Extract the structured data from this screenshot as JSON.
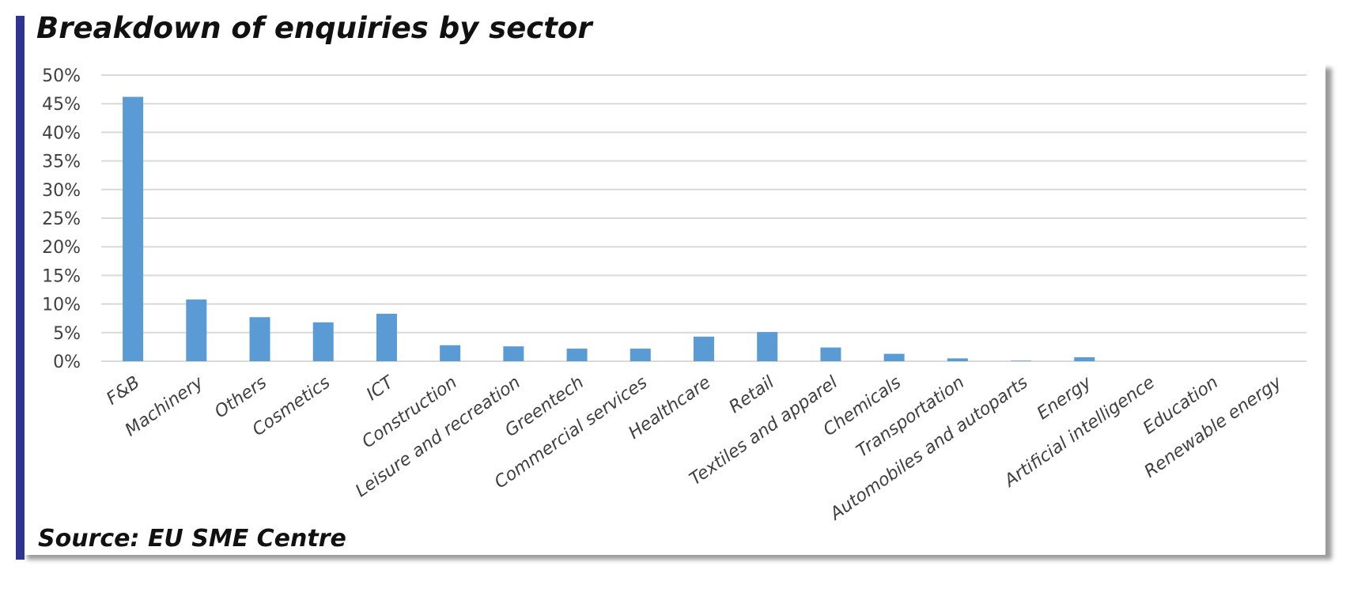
{
  "chart_data": {
    "type": "bar",
    "title": "Breakdown of enquiries by sector",
    "source": "Source: EU SME Centre",
    "xlabel": "",
    "ylabel": "",
    "ylim": [
      0,
      50
    ],
    "ytick_step": 5,
    "ytick_suffix": "%",
    "grid": true,
    "legend": "none",
    "bar_color": "#5b9bd5",
    "grid_color": "#d9d9d9",
    "accent_color": "#2e3490",
    "categories": [
      "F&B",
      "Machinery",
      "Others",
      "Cosmetics",
      "ICT",
      "Construction",
      "Leisure and recreation",
      "Greentech",
      "Commercial services",
      "Healthcare",
      "Retail",
      "Textiles and apparel",
      "Chemicals",
      "Transportation",
      "Automobiles and autoparts",
      "Energy",
      "Artificial intelligence",
      "Education",
      "Renewable energy"
    ],
    "values": [
      46.2,
      10.8,
      7.7,
      6.8,
      8.3,
      2.8,
      2.6,
      2.2,
      2.2,
      4.3,
      5.1,
      2.4,
      1.3,
      0.5,
      0.1,
      0.7,
      0,
      0,
      0
    ]
  }
}
